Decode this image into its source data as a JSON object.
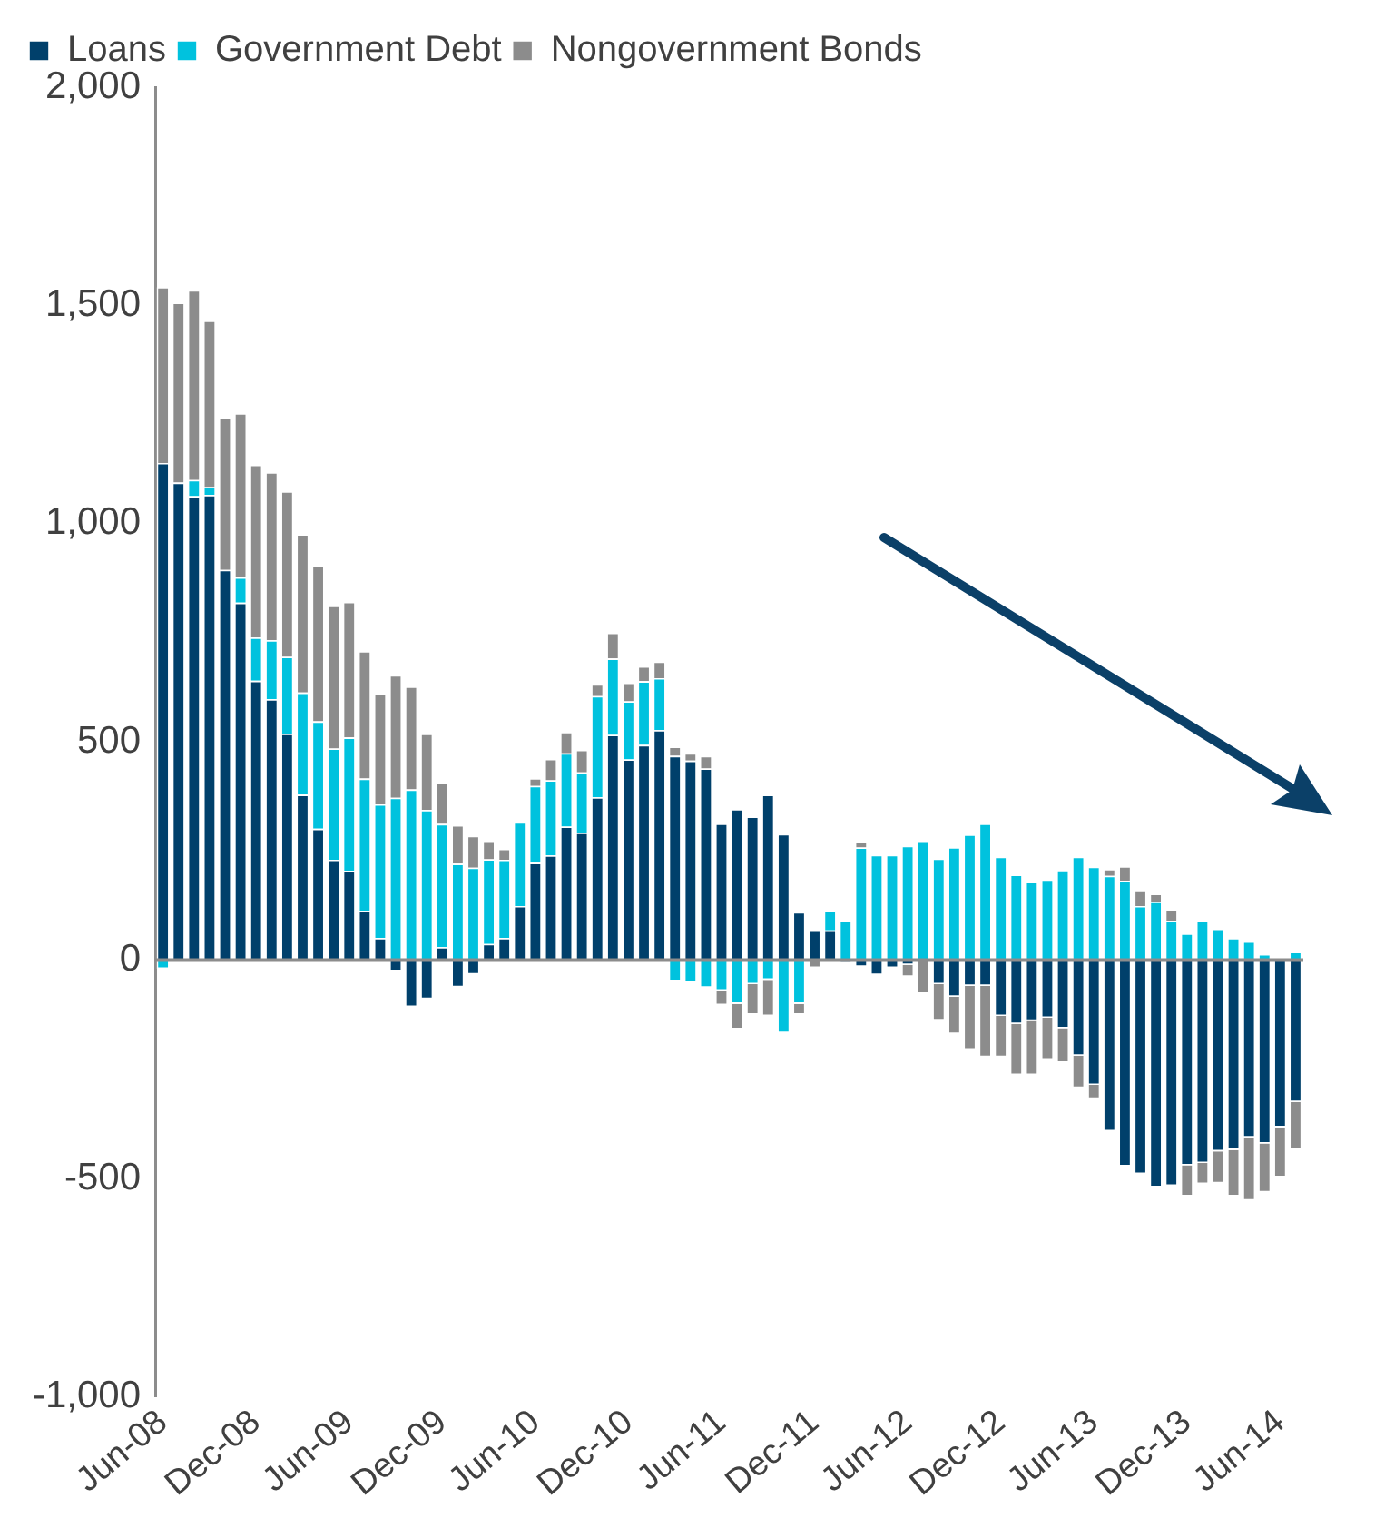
{
  "chart_data": {
    "type": "bar",
    "stacked": true,
    "legend": "top",
    "grid": false,
    "categories": [
      "Jun-08",
      null,
      null,
      null,
      null,
      null,
      "Dec-08",
      null,
      null,
      null,
      null,
      null,
      "Jun-09",
      null,
      null,
      null,
      null,
      null,
      "Dec-09",
      null,
      null,
      null,
      null,
      null,
      "Jun-10",
      null,
      null,
      null,
      null,
      null,
      "Dec-10",
      null,
      null,
      null,
      null,
      null,
      "Jun-11",
      null,
      null,
      null,
      null,
      null,
      "Dec-11",
      null,
      null,
      null,
      null,
      null,
      "Jun-12",
      null,
      null,
      null,
      null,
      null,
      "Dec-12",
      null,
      null,
      null,
      null,
      null,
      "Jun-13",
      null,
      null,
      null,
      null,
      null,
      "Dec-13",
      null,
      null,
      null,
      null,
      null,
      "Jun-14",
      null
    ],
    "series": [
      {
        "name": "Loans",
        "color": "#00406b",
        "values": [
          1139,
          1094,
          1063,
          1066,
          894,
          819,
          640,
          598,
          519,
          379,
          301,
          230,
          205,
          113,
          51,
          -25,
          -107,
          -89,
          30,
          -62,
          -33,
          37,
          51,
          124,
          223,
          240,
          306,
          292,
          373,
          516,
          460,
          493,
          527,
          468,
          457,
          439,
          313,
          346,
          329,
          379,
          289,
          110,
          68,
          68,
          -7,
          -15,
          -34,
          -18,
          -11,
          0,
          -55,
          -84,
          -59,
          -59,
          -128,
          -146,
          -139,
          -132,
          -156,
          -219,
          -286,
          -392,
          -472,
          -490,
          -520,
          -517,
          -470,
          -465,
          -438,
          -435,
          -406,
          -420,
          -383,
          -325
        ]
      },
      {
        "name": "Government Debt",
        "color": "#00c2de",
        "values": [
          -20,
          0,
          37,
          18,
          0,
          58,
          99,
          135,
          176,
          234,
          246,
          255,
          305,
          303,
          306,
          372,
          391,
          344,
          282,
          221,
          212,
          194,
          179,
          192,
          176,
          172,
          168,
          138,
          232,
          175,
          133,
          146,
          119,
          -48,
          -52,
          -63,
          -70,
          -100,
          -55,
          -45,
          -167,
          -100,
          0,
          45,
          90,
          258,
          241,
          241,
          262,
          274,
          233,
          259,
          288,
          313,
          237,
          196,
          179,
          185,
          207,
          237,
          214,
          193,
          182,
          124,
          134,
          90,
          61,
          90,
          72,
          51,
          43,
          14,
          0,
          19
        ]
      },
      {
        "name": "Nongovernment Bonds",
        "color": "#8c8c8c",
        "values": [
          403,
          412,
          435,
          381,
          348,
          376,
          396,
          385,
          379,
          363,
          357,
          327,
          311,
          292,
          254,
          281,
          236,
          175,
          96,
          88,
          73,
          43,
          25,
          0,
          18,
          49,
          49,
          52,
          27,
          59,
          43,
          34,
          38,
          21,
          17,
          29,
          -33,
          -58,
          -70,
          -83,
          0,
          -25,
          -18,
          0,
          0,
          13,
          0,
          0,
          -27,
          -77,
          -83,
          -85,
          -146,
          -163,
          -94,
          -117,
          -124,
          -96,
          -79,
          -74,
          -32,
          16,
          33,
          37,
          18,
          27,
          -71,
          -48,
          -73,
          -106,
          -145,
          -112,
          -114,
          -110
        ]
      }
    ],
    "ref_lines": [
      {
        "axis": "y",
        "value": 0,
        "color": "#8c8c8c"
      }
    ],
    "ylim": [
      -1000,
      2000
    ],
    "yticks": [
      {
        "value": -1000,
        "label": "-1,000"
      },
      -500,
      0,
      500,
      {
        "value": 1000,
        "label": "1,000"
      },
      {
        "value": 1500,
        "label": "1,500"
      },
      {
        "value": 2000,
        "label": "2,000"
      }
    ]
  }
}
